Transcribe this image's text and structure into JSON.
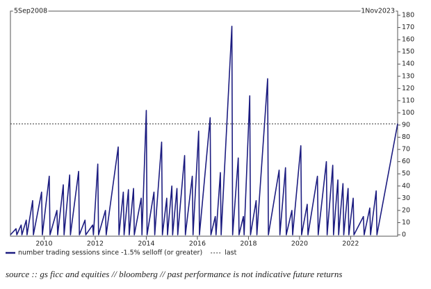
{
  "chart_data": {
    "type": "line",
    "start_label": "5Sep2008",
    "end_label": "1Nov2023",
    "x": [
      2008.68,
      2008.9,
      2008.93,
      2009.1,
      2009.13,
      2009.3,
      2009.33,
      2009.55,
      2009.58,
      2009.9,
      2009.93,
      2010.2,
      2010.23,
      2010.5,
      2010.53,
      2010.75,
      2010.78,
      2011.0,
      2011.03,
      2011.35,
      2011.38,
      2011.6,
      2011.63,
      2011.9,
      2011.93,
      2012.1,
      2012.13,
      2012.4,
      2012.43,
      2012.9,
      2012.93,
      2013.1,
      2013.13,
      2013.3,
      2013.33,
      2013.5,
      2013.53,
      2013.8,
      2013.83,
      2014.0,
      2014.03,
      2014.3,
      2014.33,
      2014.6,
      2014.63,
      2014.8,
      2014.83,
      2015.0,
      2015.03,
      2015.2,
      2015.23,
      2015.5,
      2015.53,
      2015.8,
      2015.83,
      2016.05,
      2016.08,
      2016.5,
      2016.53,
      2016.7,
      2016.73,
      2016.9,
      2016.93,
      2017.35,
      2017.38,
      2017.6,
      2017.63,
      2017.8,
      2017.83,
      2018.05,
      2018.08,
      2018.3,
      2018.33,
      2018.75,
      2018.78,
      2019.2,
      2019.23,
      2019.45,
      2019.48,
      2019.7,
      2019.73,
      2020.05,
      2020.08,
      2020.3,
      2020.33,
      2020.7,
      2020.73,
      2021.05,
      2021.08,
      2021.3,
      2021.33,
      2021.5,
      2021.53,
      2021.7,
      2021.73,
      2021.9,
      2021.93,
      2022.1,
      2022.13,
      2022.5,
      2022.53,
      2022.75,
      2022.78,
      2023.0,
      2023.03,
      2023.84
    ],
    "series": [
      {
        "name": "number trading sessions since -1.5% selloff (or greater)",
        "color": "#1c1c80",
        "values": [
          0,
          5,
          0,
          8,
          0,
          12,
          0,
          28,
          0,
          35,
          0,
          48,
          0,
          20,
          0,
          41,
          0,
          49,
          0,
          52,
          0,
          12,
          0,
          8,
          0,
          58,
          0,
          20,
          0,
          72,
          0,
          35,
          0,
          37,
          0,
          38,
          0,
          30,
          0,
          102,
          0,
          35,
          0,
          76,
          0,
          30,
          0,
          40,
          0,
          38,
          0,
          65,
          0,
          48,
          0,
          85,
          0,
          96,
          0,
          15,
          0,
          51,
          0,
          171,
          0,
          63,
          0,
          15,
          0,
          114,
          0,
          28,
          0,
          128,
          0,
          53,
          0,
          55,
          0,
          20,
          0,
          73,
          0,
          25,
          0,
          48,
          0,
          60,
          0,
          57,
          0,
          45,
          0,
          42,
          0,
          38,
          0,
          30,
          0,
          15,
          0,
          22,
          0,
          36,
          0,
          91
        ]
      }
    ],
    "reference_line": {
      "name": "last",
      "value": 91,
      "color": "#333333"
    },
    "xlim": [
      2008.68,
      2023.84
    ],
    "xticks": [
      2010,
      2012,
      2014,
      2016,
      2018,
      2020,
      2022
    ],
    "ylim": [
      0,
      180
    ],
    "yticks": [
      0,
      10,
      20,
      30,
      40,
      50,
      60,
      70,
      80,
      90,
      100,
      110,
      120,
      130,
      140,
      150,
      160,
      170,
      180
    ],
    "source": "source :: gs ficc and equities // bloomberg // past performance is not indicative future returns"
  }
}
